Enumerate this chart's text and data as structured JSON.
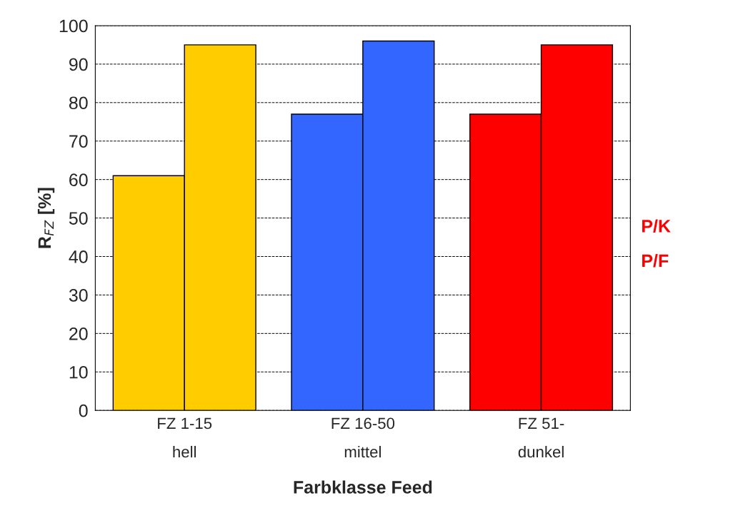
{
  "chart_data": {
    "type": "bar",
    "xlabel": "Farbklasse Feed",
    "ylabel": "R$_{FZ}$ [%]",
    "categories": [
      "FZ 1-15\nhell",
      "FZ 16-50\nmittel",
      "FZ 51-\ndunkel"
    ],
    "series": [
      {
        "name": "P/F",
        "colors": [
          "#ffcc00",
          "#3366ff",
          "#ff0000"
        ],
        "values": [
          61,
          77,
          77
        ]
      },
      {
        "name": "P/K",
        "colors": [
          "#ffcc00",
          "#3366ff",
          "#ff0000"
        ],
        "values": [
          95,
          96,
          95
        ]
      }
    ],
    "ylim": [
      0,
      100
    ],
    "yticks": [
      0,
      10,
      20,
      30,
      40,
      50,
      60,
      70,
      80,
      90,
      100
    ],
    "grid": "y"
  }
}
